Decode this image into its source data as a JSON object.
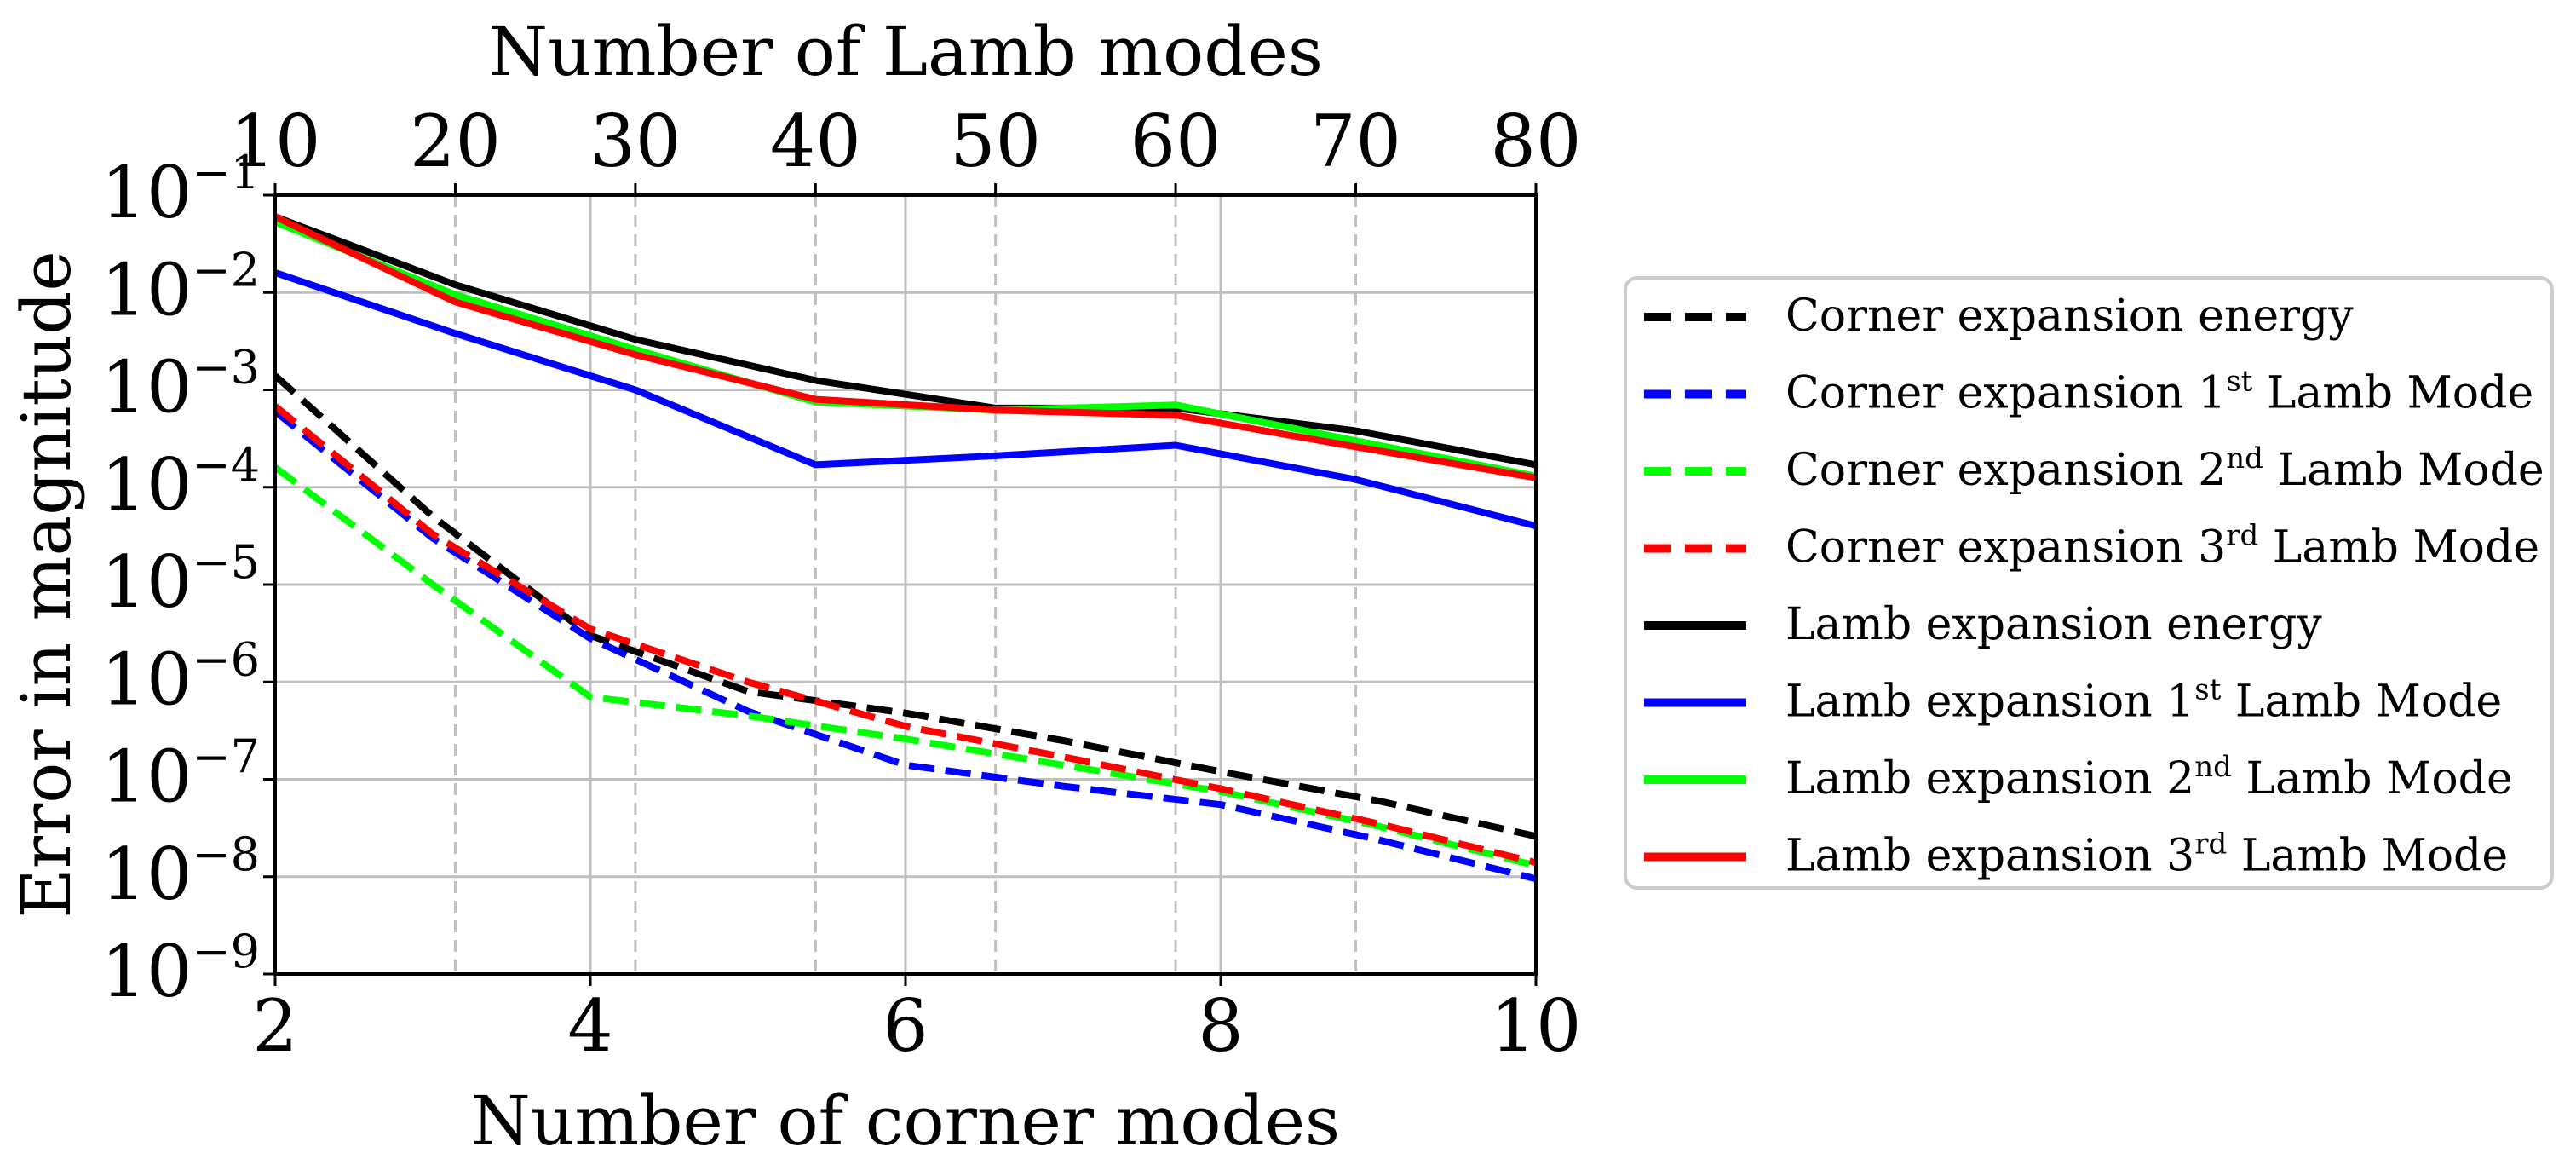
{
  "chart_data": {
    "type": "line",
    "title": "",
    "xlabel": "Number of corner modes",
    "ylabel": "Error in magnitude",
    "x2label": "Number of Lamb modes",
    "xlim": [
      2,
      10
    ],
    "ylim_log10": [
      -9,
      -1
    ],
    "yscale": "log",
    "grid": true,
    "legend_position": "outside-right",
    "x_ticks": [
      2,
      4,
      6,
      8,
      10
    ],
    "x_tick_labels": [
      "2",
      "4",
      "6",
      "8",
      "10"
    ],
    "x2_ticks_lamb": [
      10,
      20,
      30,
      40,
      50,
      60,
      70,
      80
    ],
    "x2_tick_labels": [
      "10",
      "20",
      "30",
      "40",
      "50",
      "60",
      "70",
      "80"
    ],
    "x2_tick_positions_corner": [
      2,
      3.143,
      4.286,
      5.429,
      6.571,
      7.714,
      8.857,
      10
    ],
    "y_tick_exponents": [
      -1,
      -2,
      -3,
      -4,
      -5,
      -6,
      -7,
      -8,
      -9
    ],
    "y_tick_base": "10",
    "series": [
      {
        "name": "Corner expansion energy",
        "legend_label": [
          "Corner expansion energy",
          "",
          ""
        ],
        "color": "#000000",
        "dash": true,
        "x": [
          2,
          3,
          4,
          5,
          6,
          7,
          8,
          9,
          10
        ],
        "y": [
          0.0014,
          5e-05,
          3e-06,
          8e-07,
          4.8e-07,
          2.5e-07,
          1.2e-07,
          6e-08,
          2.6e-08
        ]
      },
      {
        "name": "Corner expansion 1st Lamb Mode",
        "legend_label": [
          "Corner expansion 1",
          "st",
          " Lamb Mode"
        ],
        "color": "#0000ff",
        "dash": true,
        "x": [
          2,
          3,
          4,
          5,
          6,
          7,
          8,
          9,
          10
        ],
        "y": [
          0.0006,
          3e-05,
          2.8e-06,
          5e-07,
          1.4e-07,
          8.5e-08,
          5.5e-08,
          2.4e-08,
          9.5e-09
        ]
      },
      {
        "name": "Corner expansion 2nd Lamb Mode",
        "legend_label": [
          "Corner expansion 2",
          "nd",
          " Lamb Mode"
        ],
        "color": "#00ff00",
        "dash": true,
        "x": [
          2,
          3,
          4,
          5,
          6,
          7,
          8,
          9,
          10
        ],
        "y": [
          0.00016,
          1e-05,
          7e-07,
          4.5e-07,
          2.6e-07,
          1.4e-07,
          7.5e-08,
          3.3e-08,
          1.3e-08
        ]
      },
      {
        "name": "Corner expansion 3rd Lamb Mode",
        "legend_label": [
          "Corner expansion 3",
          "rd",
          " Lamb Mode"
        ],
        "color": "#ff0000",
        "dash": true,
        "x": [
          2,
          3,
          4,
          5,
          6,
          7,
          8,
          9,
          10
        ],
        "y": [
          0.00068,
          3.3e-05,
          3.5e-06,
          1e-06,
          3.5e-07,
          1.7e-07,
          8e-08,
          3.5e-08,
          1.4e-08
        ]
      },
      {
        "name": "Lamb expansion energy",
        "legend_label": [
          "Lamb expansion energy",
          "",
          ""
        ],
        "color": "#000000",
        "dash": false,
        "x": [
          2,
          3.143,
          4.286,
          5.429,
          6.571,
          7.714,
          8.857,
          10
        ],
        "y": [
          0.06,
          0.012,
          0.0033,
          0.00125,
          0.00065,
          0.00065,
          0.00038,
          0.00017
        ]
      },
      {
        "name": "Lamb expansion 1st Lamb Mode",
        "legend_label": [
          "Lamb expansion 1",
          "st",
          " Lamb Mode"
        ],
        "color": "#0000ff",
        "dash": false,
        "x": [
          2,
          3.143,
          4.286,
          5.429,
          6.571,
          7.714,
          8.857,
          10
        ],
        "y": [
          0.016,
          0.0038,
          0.001,
          0.00017,
          0.00021,
          0.00027,
          0.00012,
          4e-05
        ]
      },
      {
        "name": "Lamb expansion 2nd Lamb Mode",
        "legend_label": [
          "Lamb expansion 2",
          "nd",
          " Lamb Mode"
        ],
        "color": "#00ff00",
        "dash": false,
        "x": [
          2,
          3.143,
          4.286,
          5.429,
          6.571,
          7.714,
          8.857,
          10
        ],
        "y": [
          0.053,
          0.0095,
          0.0026,
          0.00075,
          0.00062,
          0.0007,
          0.0003,
          0.00013
        ]
      },
      {
        "name": "Lamb expansion 3rd Lamb Mode",
        "legend_label": [
          "Lamb expansion 3",
          "rd",
          " Lamb Mode"
        ],
        "color": "#ff0000",
        "dash": false,
        "x": [
          2,
          3.143,
          4.286,
          5.429,
          6.571,
          7.714,
          8.857,
          10
        ],
        "y": [
          0.06,
          0.008,
          0.0023,
          0.0008,
          0.00062,
          0.00055,
          0.00026,
          0.000125
        ]
      }
    ]
  }
}
